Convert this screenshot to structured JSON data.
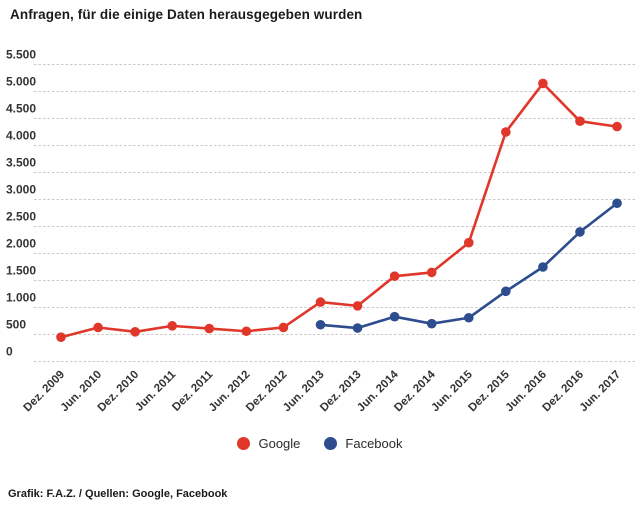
{
  "title": "Anfragen, für die einige Daten herausgegeben wurden",
  "footer": "Grafik: F.A.Z. / Quellen: Google, Facebook",
  "legend": {
    "items": [
      {
        "label": "Google",
        "color": "#e0372a"
      },
      {
        "label": "Facebook",
        "color": "#2e4d8e"
      }
    ]
  },
  "chart_data": {
    "type": "line",
    "title": "Anfragen, für die einige Daten herausgegeben wurden",
    "categories": [
      "Dez. 2009",
      "Jun. 2010",
      "Dez. 2010",
      "Jun. 2011",
      "Dez. 2011",
      "Jun. 2012",
      "Dez. 2012",
      "Jun. 2013",
      "Dez. 2013",
      "Jun. 2014",
      "Dez. 2014",
      "Jun. 2015",
      "Dez. 2015",
      "Jun. 2016",
      "Dez. 2016",
      "Jun. 2017"
    ],
    "series": [
      {
        "name": "Google",
        "color": "#e0372a",
        "start_index": 0,
        "values": [
          450,
          630,
          550,
          660,
          610,
          560,
          630,
          1100,
          1030,
          1580,
          1650,
          2200,
          4250,
          5150,
          4450,
          4350
        ]
      },
      {
        "name": "Facebook",
        "color": "#2e4d8e",
        "start_index": 7,
        "values": [
          680,
          620,
          830,
          700,
          810,
          1300,
          1750,
          2400,
          2930
        ]
      }
    ],
    "xlabel": "",
    "ylabel": "",
    "ylim": [
      0,
      5500
    ],
    "ytick_step": 500,
    "ytick_labels": [
      "0",
      "500",
      "1.000",
      "1.500",
      "2.000",
      "2.500",
      "3.000",
      "3.500",
      "4.000",
      "4.500",
      "5.000",
      "5.500"
    ],
    "grid": "horizontal-dashed",
    "legend_position": "bottom-center",
    "marker": "circle"
  }
}
